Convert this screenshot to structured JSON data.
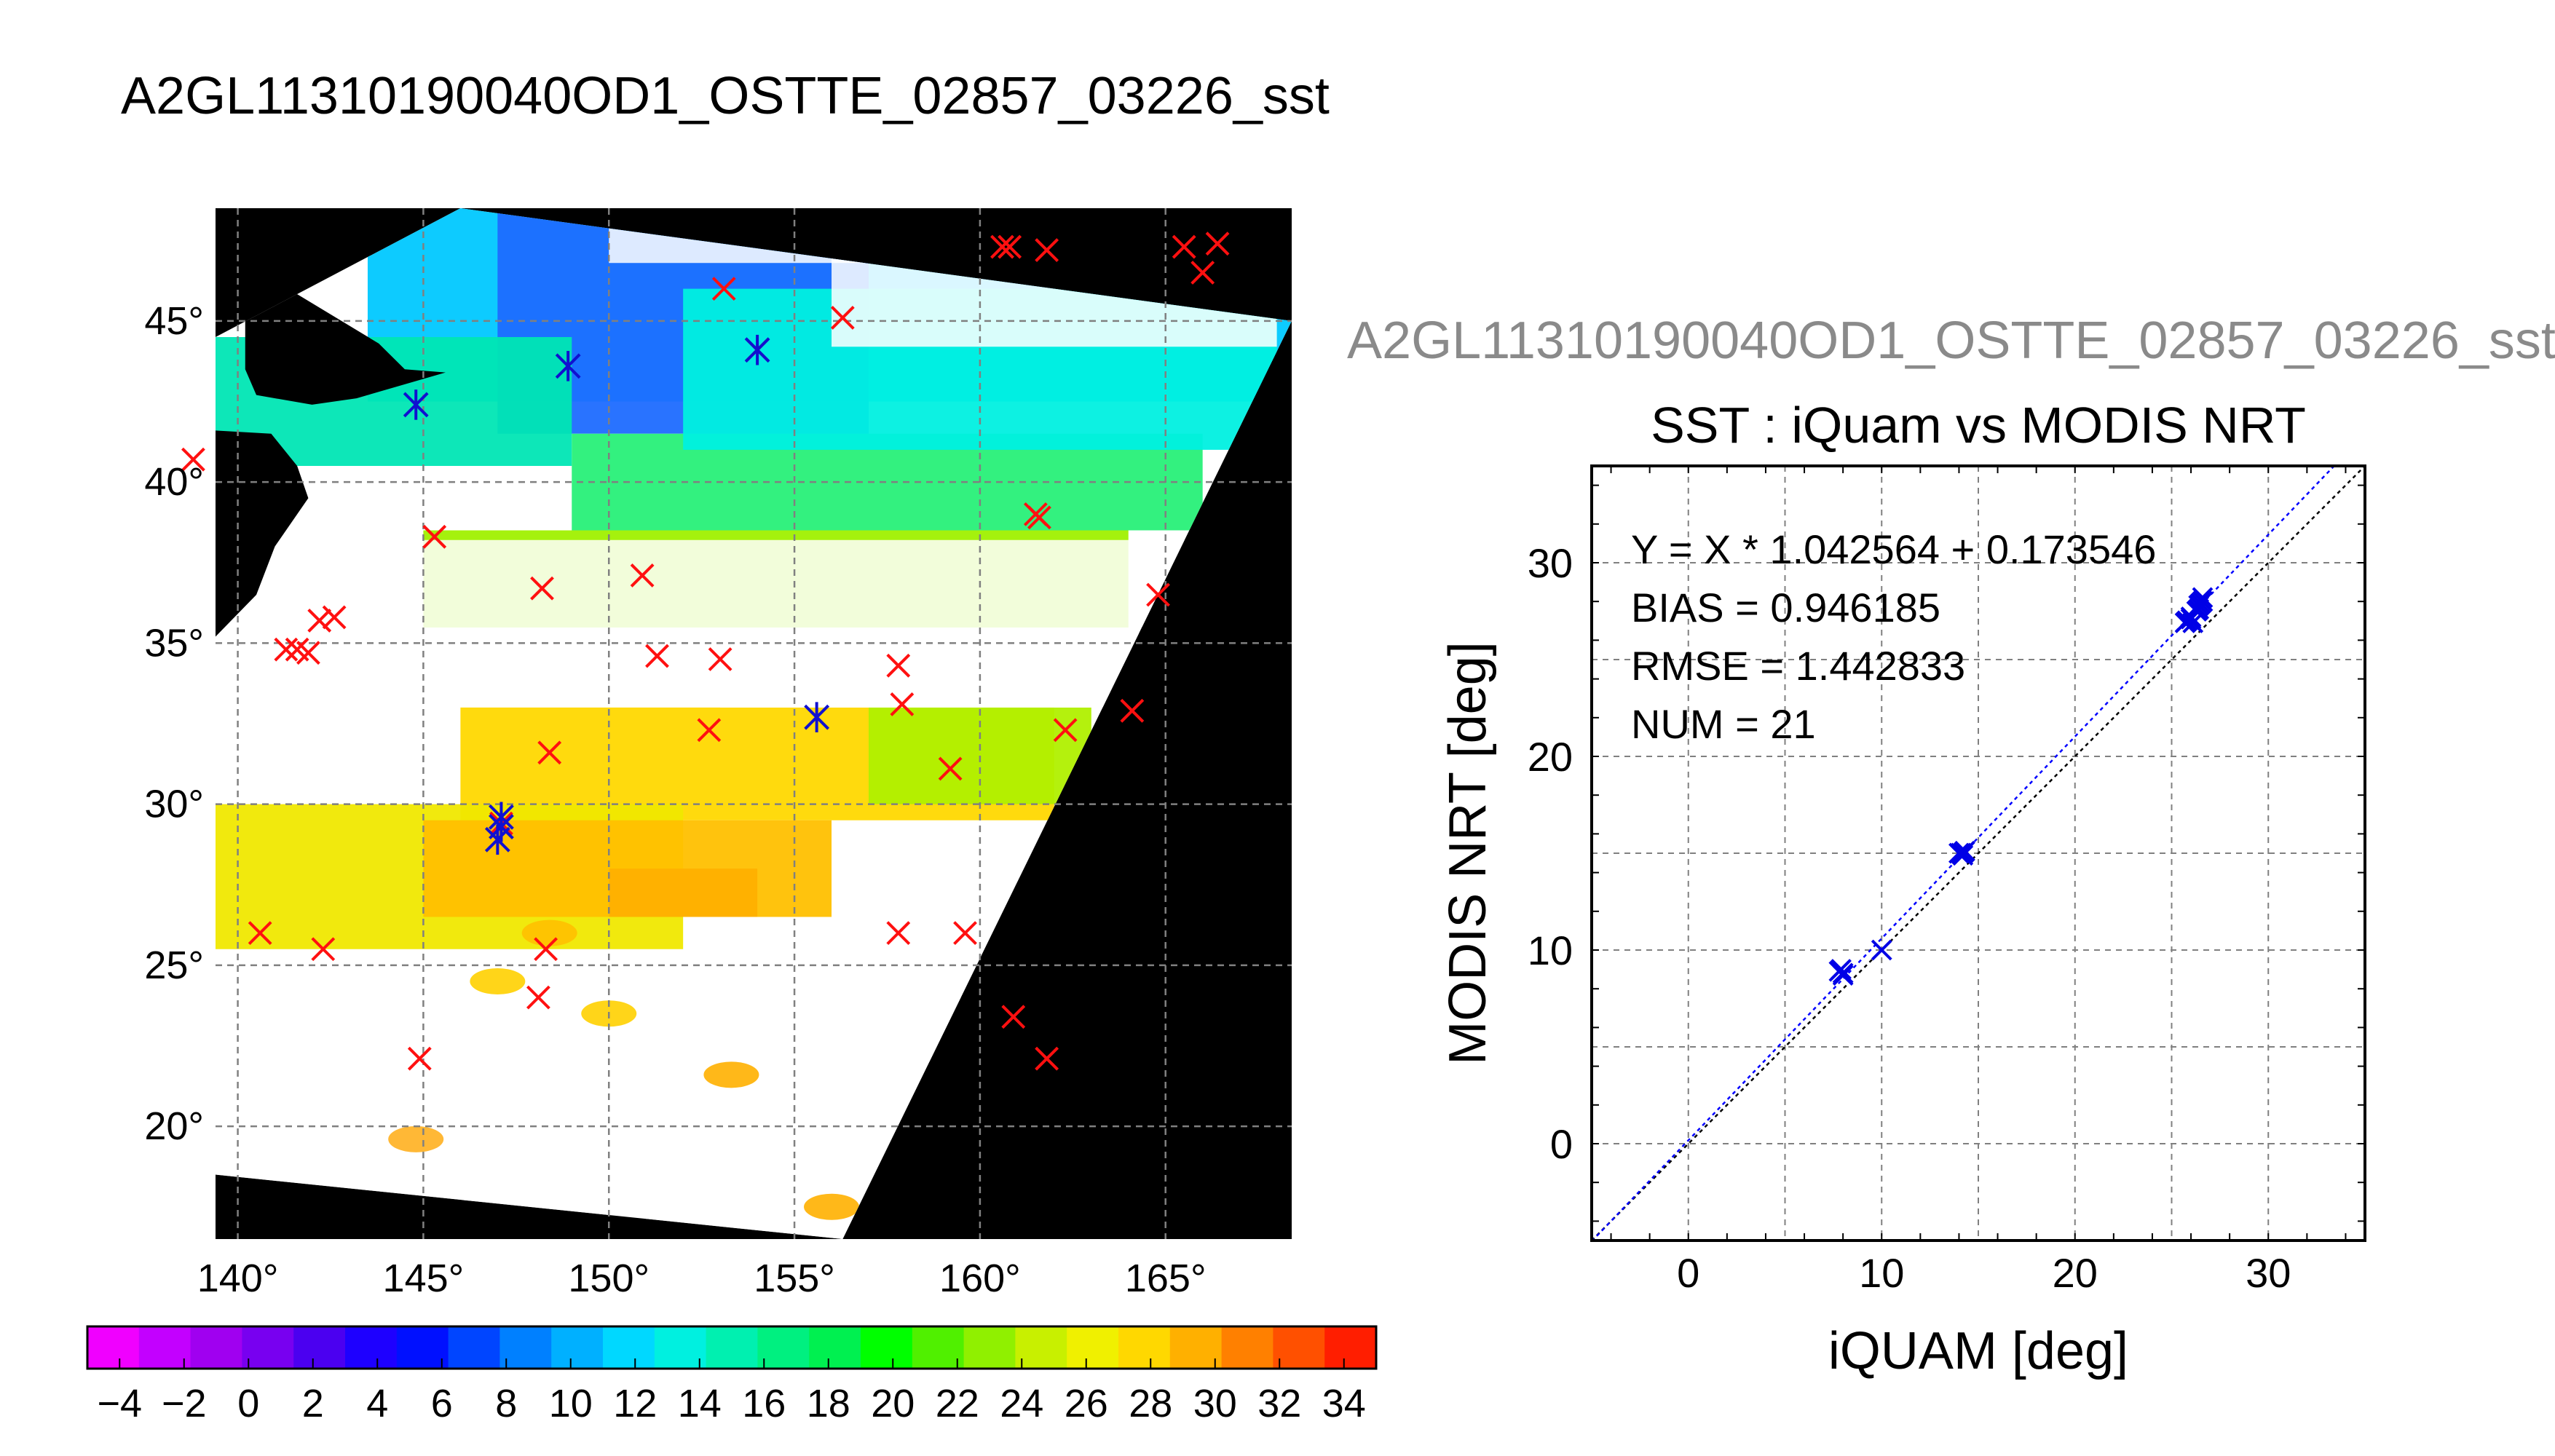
{
  "figure": {
    "title": "A2GL11310190040OD1_OSTTE_02857_03226_sst",
    "subtitle": "A2GL11310190040OD1_OSTTE_02857_03226_sst"
  },
  "chart_data": [
    {
      "type": "heatmap",
      "x_tick_labels": [
        "140°",
        "145°",
        "150°",
        "155°",
        "160°",
        "165°"
      ],
      "x_ticks": [
        140,
        145,
        150,
        155,
        160,
        165
      ],
      "y_tick_labels": [
        "20°",
        "25°",
        "30°",
        "35°",
        "40°",
        "45°"
      ],
      "y_ticks": [
        20,
        25,
        30,
        35,
        40,
        45
      ],
      "xlim": [
        139.4,
        168.4
      ],
      "ylim": [
        16.5,
        48.5
      ],
      "grid": true,
      "swath_corners": [
        [
          139.4,
          44.5
        ],
        [
          146.0,
          48.5
        ],
        [
          168.4,
          45.0
        ],
        [
          156.3,
          16.5
        ],
        [
          139.4,
          18.5
        ]
      ],
      "colorbar": {
        "min": -5,
        "max": 35,
        "step": 2,
        "tick_labels": [
          "−4",
          "−2",
          "0",
          "2",
          "4",
          "6",
          "8",
          "10",
          "12",
          "14",
          "16",
          "18",
          "20",
          "22",
          "24",
          "26",
          "28",
          "30",
          "32",
          "34"
        ],
        "ticks": [
          -4,
          -2,
          0,
          2,
          4,
          6,
          8,
          10,
          12,
          14,
          16,
          18,
          20,
          22,
          24,
          26,
          28,
          30,
          32,
          34
        ],
        "colors": [
          "#f000ff",
          "#c300ff",
          "#a000f0",
          "#7800f0",
          "#4b00f0",
          "#1e00ff",
          "#0010ff",
          "#0045ff",
          "#0080ff",
          "#00b0ff",
          "#00d8ff",
          "#00f0e0",
          "#00f0b0",
          "#00f080",
          "#00f050",
          "#00ff00",
          "#50f000",
          "#90f000",
          "#c8f000",
          "#f0f000",
          "#ffd800",
          "#ffb000",
          "#ff8000",
          "#ff5000",
          "#ff1e00"
        ]
      },
      "iquam_red_markers": [
        [
          138.8,
          40.7
        ],
        [
          141.3,
          34.8
        ],
        [
          141.6,
          34.8
        ],
        [
          141.9,
          34.7
        ],
        [
          142.2,
          35.7
        ],
        [
          142.6,
          35.8
        ],
        [
          140.6,
          26.0
        ],
        [
          142.3,
          25.5
        ],
        [
          145.3,
          38.3
        ],
        [
          144.9,
          22.1
        ],
        [
          147.1,
          29.4
        ],
        [
          148.2,
          36.7
        ],
        [
          148.4,
          31.6
        ],
        [
          148.3,
          25.5
        ],
        [
          148.1,
          24.0
        ],
        [
          150.9,
          37.1
        ],
        [
          151.3,
          34.6
        ],
        [
          153.0,
          34.5
        ],
        [
          152.7,
          32.3
        ],
        [
          153.1,
          46.0
        ],
        [
          154.0,
          44.1
        ],
        [
          156.3,
          45.1
        ],
        [
          157.8,
          34.3
        ],
        [
          157.9,
          33.1
        ],
        [
          157.8,
          26.0
        ],
        [
          159.2,
          31.1
        ],
        [
          159.6,
          26.0
        ],
        [
          160.6,
          47.3
        ],
        [
          160.8,
          47.3
        ],
        [
          161.8,
          47.2
        ],
        [
          161.5,
          39.0
        ],
        [
          161.6,
          38.9
        ],
        [
          162.3,
          32.3
        ],
        [
          160.9,
          23.4
        ],
        [
          161.8,
          22.1
        ],
        [
          164.1,
          32.9
        ],
        [
          164.8,
          36.5
        ],
        [
          165.5,
          47.3
        ],
        [
          166.4,
          47.4
        ],
        [
          166.0,
          46.5
        ]
      ],
      "collocation_markers": [
        [
          144.8,
          42.4
        ],
        [
          148.9,
          43.6
        ],
        [
          154.0,
          44.1
        ],
        [
          155.6,
          32.7
        ],
        [
          147.1,
          29.3
        ],
        [
          147.1,
          29.6
        ],
        [
          147.0,
          28.9
        ]
      ]
    },
    {
      "type": "scatter",
      "title": "SST : iQuam vs MODIS NRT",
      "xlabel": "iQUAM [deg]",
      "ylabel": "MODIS NRT [deg]",
      "xlim": [
        -5,
        35
      ],
      "ylim": [
        -5,
        35
      ],
      "x_ticks": [
        0,
        10,
        20,
        30
      ],
      "y_ticks": [
        0,
        10,
        20,
        30
      ],
      "grid": true,
      "annotations": [
        "Y = X * 1.042564 + 0.173546",
        "BIAS = 0.946185",
        "RMSE = 1.442833",
        "NUM = 21"
      ],
      "fit": {
        "slope": 1.042564,
        "intercept": 0.173546
      },
      "points": [
        [
          7.8,
          8.9
        ],
        [
          8.0,
          8.7
        ],
        [
          7.9,
          9.0
        ],
        [
          10.0,
          10.0
        ],
        [
          14.1,
          15.0
        ],
        [
          14.3,
          15.1
        ],
        [
          14.2,
          14.9
        ],
        [
          14.0,
          15.0
        ],
        [
          25.8,
          27.0
        ],
        [
          26.0,
          27.2
        ],
        [
          26.1,
          26.9
        ],
        [
          26.4,
          27.8
        ],
        [
          26.6,
          28.2
        ],
        [
          26.5,
          27.9
        ],
        [
          26.3,
          27.5
        ],
        [
          26.0,
          27.1
        ],
        [
          25.7,
          26.9
        ],
        [
          26.6,
          28.0
        ],
        [
          14.2,
          15.0
        ],
        [
          8.0,
          8.8
        ],
        [
          26.4,
          27.6
        ]
      ]
    }
  ]
}
